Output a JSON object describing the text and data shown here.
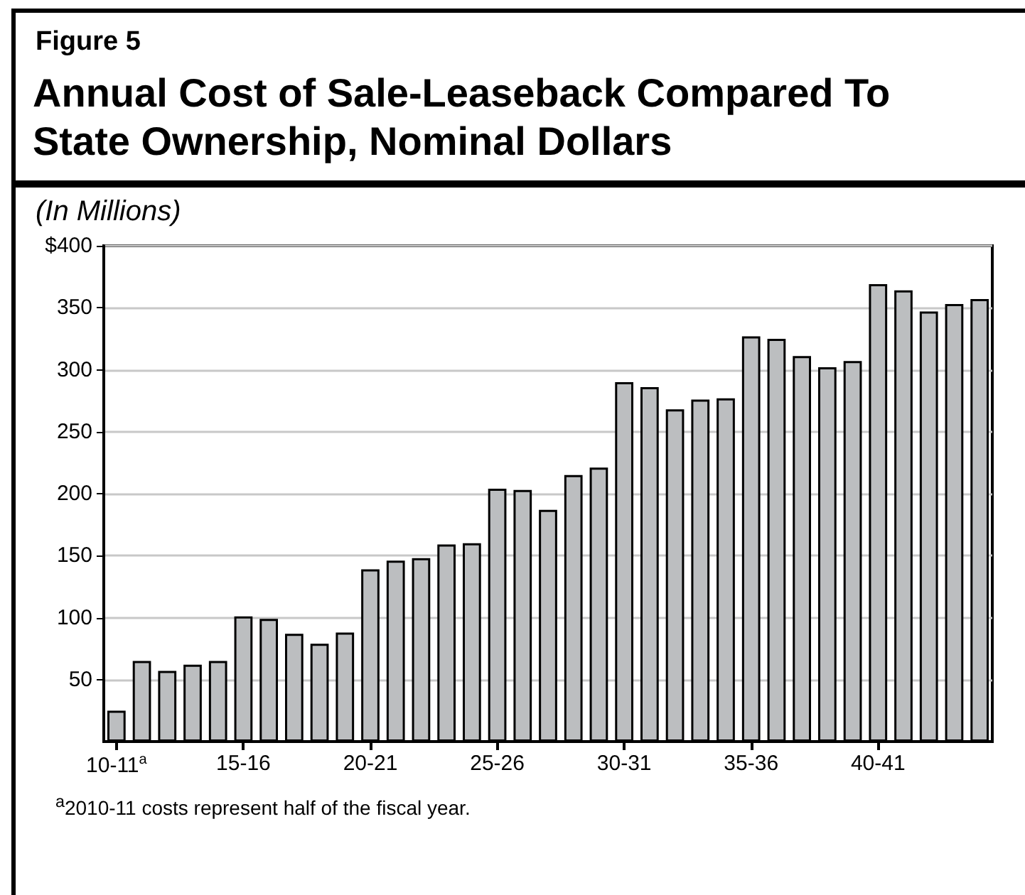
{
  "chart_data": {
    "type": "bar",
    "subtitle": "Figure 5",
    "title": "Annual Cost of Sale-Leaseback Compared To State Ownership, Nominal Dollars",
    "ylabel": "(In Millions)",
    "categories": [
      "10-11$^{a}$",
      null,
      null,
      null,
      null,
      "15-16",
      null,
      null,
      null,
      null,
      "20-21",
      null,
      null,
      null,
      null,
      "25-26",
      null,
      null,
      null,
      null,
      "30-31",
      null,
      null,
      null,
      null,
      "35-36",
      null,
      null,
      null,
      null,
      "40-41",
      null,
      null,
      null,
      null
    ],
    "values": [
      25,
      65,
      57,
      62,
      65,
      101,
      99,
      87,
      79,
      88,
      139,
      146,
      148,
      159,
      160,
      204,
      203,
      187,
      215,
      221,
      290,
      286,
      268,
      276,
      277,
      327,
      325,
      311,
      302,
      307,
      369,
      364,
      347,
      353,
      357
    ],
    "color": "#bcbec0",
    "ylim": [
      0,
      400
    ],
    "yticks": [
      50,
      100,
      150,
      200,
      250,
      300,
      350,
      {
        "value": 400,
        "label": "$400"
      }
    ],
    "grid": "y",
    "annotations": [
      "$^{a}$2010-11 costs represent half of the fiscal year."
    ]
  }
}
